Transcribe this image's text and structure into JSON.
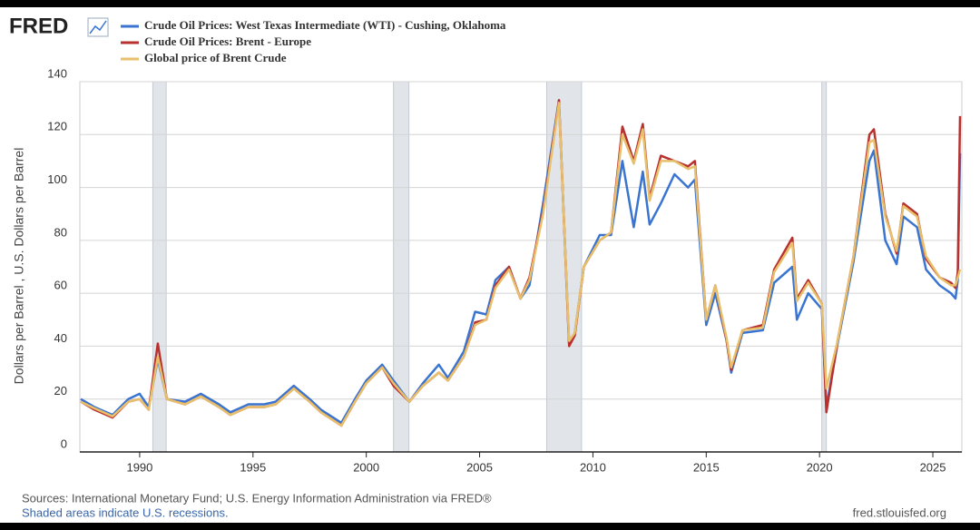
{
  "brand": "FRED",
  "chart_data": {
    "type": "line",
    "y_label": "Dollars per Barrel , U.S. Dollars per Barrel",
    "x": [
      1987.4,
      1988.0,
      1988.8,
      1989.5,
      1990.0,
      1990.4,
      1990.8,
      1991.2,
      1992.0,
      1992.7,
      1993.5,
      1994.0,
      1994.8,
      1995.5,
      1996.0,
      1996.8,
      1997.5,
      1998.0,
      1998.9,
      1999.5,
      2000.0,
      2000.7,
      2001.2,
      2001.9,
      2002.5,
      2003.2,
      2003.6,
      2004.3,
      2004.8,
      2005.3,
      2005.7,
      2006.3,
      2006.8,
      2007.2,
      2007.8,
      2008.5,
      2008.95,
      2009.2,
      2009.6,
      2010.3,
      2010.8,
      2011.3,
      2011.8,
      2012.2,
      2012.5,
      2013.0,
      2013.6,
      2014.2,
      2014.5,
      2015.0,
      2015.4,
      2015.9,
      2016.1,
      2016.6,
      2017.5,
      2018.0,
      2018.8,
      2019.0,
      2019.5,
      2020.1,
      2020.3,
      2020.8,
      2021.5,
      2022.2,
      2022.4,
      2022.9,
      2023.4,
      2023.7,
      2024.3,
      2024.7,
      2025.3,
      2025.8,
      2026.0,
      2026.1,
      2026.2
    ],
    "series": [
      {
        "name": "Crude Oil Prices: West Texas Intermediate (WTI) - Cushing, Oklahoma",
        "color": "#3a74d1",
        "values": [
          20,
          17,
          14,
          20,
          22,
          17,
          35,
          20,
          19,
          22,
          18,
          15,
          18,
          18,
          19,
          25,
          20,
          16,
          11,
          20,
          27,
          33,
          27,
          19,
          26,
          33,
          28,
          38,
          53,
          52,
          65,
          70,
          58,
          63,
          94,
          133,
          41,
          45,
          70,
          82,
          82,
          110,
          85,
          106,
          86,
          94,
          105,
          100,
          103,
          48,
          60,
          42,
          30,
          45,
          46,
          64,
          70,
          50,
          60,
          54,
          17,
          41,
          72,
          110,
          114,
          80,
          71,
          89,
          85,
          69,
          63,
          60,
          58,
          65,
          113
        ]
      },
      {
        "name": "Crude Oil Prices: Brent - Europe",
        "color": "#b8312f",
        "values": [
          19,
          16,
          13,
          19,
          20,
          16,
          41,
          20,
          18,
          21,
          17,
          14,
          17,
          17,
          18,
          24,
          19,
          15,
          10,
          19,
          26,
          32,
          25,
          19,
          25,
          30,
          27,
          36,
          49,
          50,
          63,
          70,
          58,
          66,
          91,
          133,
          40,
          44,
          70,
          80,
          83,
          123,
          110,
          124,
          96,
          112,
          110,
          108,
          110,
          50,
          63,
          42,
          31,
          46,
          48,
          69,
          81,
          58,
          65,
          56,
          15,
          42,
          74,
          120,
          122,
          90,
          75,
          94,
          90,
          73,
          66,
          64,
          62,
          68,
          127
        ]
      },
      {
        "name": "Global price of Brent Crude",
        "color": "#e8bf6a",
        "values": [
          19,
          16.5,
          13.5,
          19,
          20,
          16,
          36,
          20,
          18,
          21,
          17,
          14,
          17,
          17,
          18,
          24,
          19,
          15,
          10,
          19,
          26,
          32,
          26,
          19,
          25,
          30,
          27,
          36,
          48,
          50,
          62,
          69,
          58,
          65,
          90,
          132,
          42,
          45,
          70,
          80,
          83,
          120,
          109,
          122,
          95,
          110,
          110,
          107,
          108,
          50,
          63,
          43,
          32,
          46,
          47,
          68,
          79,
          57,
          64,
          56,
          24,
          42,
          74,
          117,
          118,
          89,
          76,
          93,
          89,
          74,
          66,
          63,
          63,
          66,
          69
        ]
      }
    ],
    "recessions": [
      [
        1990.58,
        1991.17
      ],
      [
        2001.2,
        2001.88
      ],
      [
        2007.96,
        2009.5
      ],
      [
        2020.1,
        2020.3
      ]
    ],
    "xlim": [
      1987.36,
      2026.28
    ],
    "xticks": [
      1990,
      1995,
      2000,
      2005,
      2010,
      2015,
      2020,
      2025
    ],
    "ylim": [
      0,
      140
    ],
    "yticks": [
      0,
      20,
      40,
      60,
      80,
      100,
      120,
      140
    ],
    "grid": true
  },
  "footer": {
    "sources": "Sources: International Monetary Fund; U.S. Energy Information Administration via FRED®",
    "recession_note": "Shaded areas indicate U.S. recessions.",
    "site": "fred.stlouisfed.org"
  }
}
